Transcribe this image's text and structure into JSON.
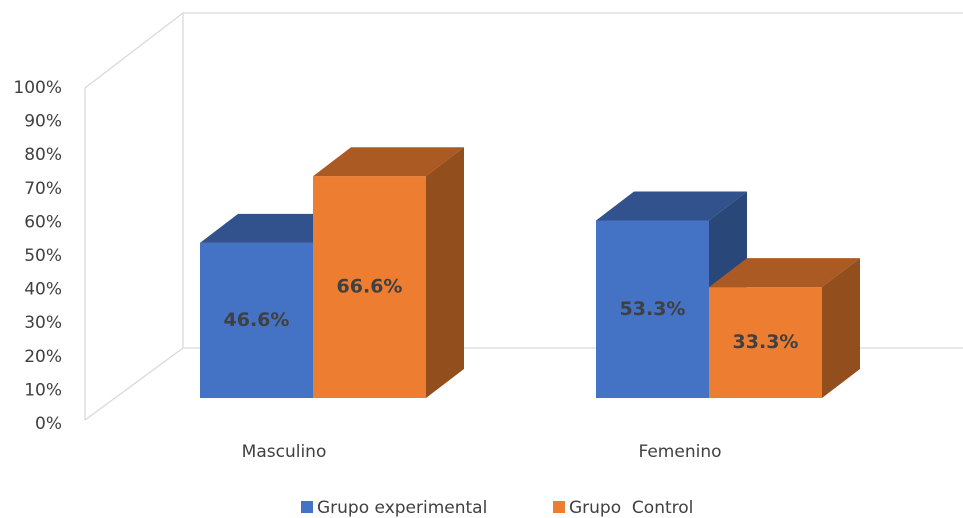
{
  "chart_data": {
    "type": "bar3d",
    "categories": [
      "Masculino",
      "Femenino"
    ],
    "series": [
      {
        "name": "Grupo experimental",
        "color": "#4472c4",
        "values": [
          46.6,
          53.3
        ],
        "value_labels": [
          "46.6%",
          "53.3%"
        ]
      },
      {
        "name": "Grupo  Control",
        "color": "#ed7d31",
        "values": [
          66.6,
          33.3
        ],
        "value_labels": [
          "66.6%",
          "33.3%"
        ]
      }
    ],
    "ylim": [
      0,
      100
    ],
    "yticks": [
      {
        "value": 0,
        "label": "0%"
      },
      {
        "value": 10,
        "label": "10%"
      },
      {
        "value": 20,
        "label": "20%"
      },
      {
        "value": 30,
        "label": "30%"
      },
      {
        "value": 40,
        "label": "40%"
      },
      {
        "value": 50,
        "label": "50%"
      },
      {
        "value": 60,
        "label": "60%"
      },
      {
        "value": 70,
        "label": "70%"
      },
      {
        "value": 80,
        "label": "80%"
      },
      {
        "value": 90,
        "label": "90%"
      },
      {
        "value": 100,
        "label": "100%"
      }
    ],
    "legend": "bottom"
  }
}
